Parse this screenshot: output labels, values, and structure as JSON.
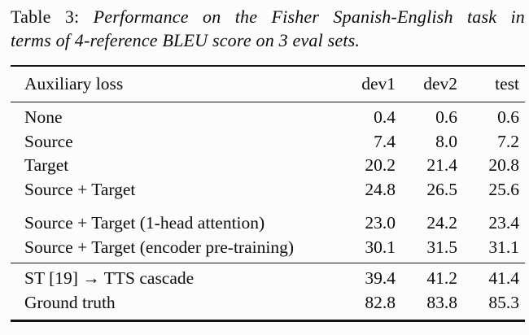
{
  "colors": {
    "background": "#fcfcfc",
    "text": "#0d0d0d",
    "rule": "#151515"
  },
  "caption": {
    "label": "Table 3:",
    "line1": "Performance on the Fisher Spanish-English task in",
    "line2": "terms of 4-reference BLEU score on 3 eval sets."
  },
  "table": {
    "header": {
      "label": "Auxiliary loss",
      "columns": [
        "dev1",
        "dev2",
        "test"
      ]
    },
    "groups": [
      {
        "rows": [
          {
            "label": "None",
            "values": [
              "0.4",
              "0.6",
              "0.6"
            ]
          },
          {
            "label": "Source",
            "values": [
              "7.4",
              "8.0",
              "7.2"
            ]
          },
          {
            "label": "Target",
            "values": [
              "20.2",
              "21.4",
              "20.8"
            ]
          },
          {
            "label": "Source + Target",
            "values": [
              "24.8",
              "26.5",
              "25.6"
            ]
          }
        ]
      },
      {
        "rows": [
          {
            "label": "Source + Target (1-head attention)",
            "values": [
              "23.0",
              "24.2",
              "23.4"
            ]
          },
          {
            "label": "Source + Target (encoder pre-training)",
            "values": [
              "30.1",
              "31.5",
              "31.1"
            ]
          }
        ]
      },
      {
        "rows": [
          {
            "label": "ST [19] → TTS cascade",
            "values": [
              "39.4",
              "41.2",
              "41.4"
            ]
          },
          {
            "label": "Ground truth",
            "values": [
              "82.8",
              "83.8",
              "85.3"
            ]
          }
        ]
      }
    ]
  }
}
